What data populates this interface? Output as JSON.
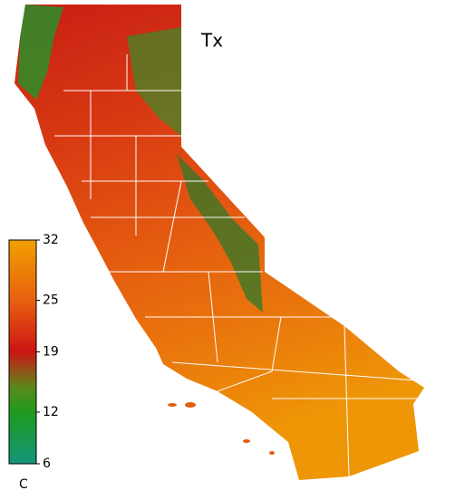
{
  "map": {
    "title": "Tx",
    "colorbar": {
      "unit": "C",
      "lim": [
        6,
        32
      ],
      "ticks": [
        6,
        12,
        19,
        25,
        32
      ]
    }
  }
}
